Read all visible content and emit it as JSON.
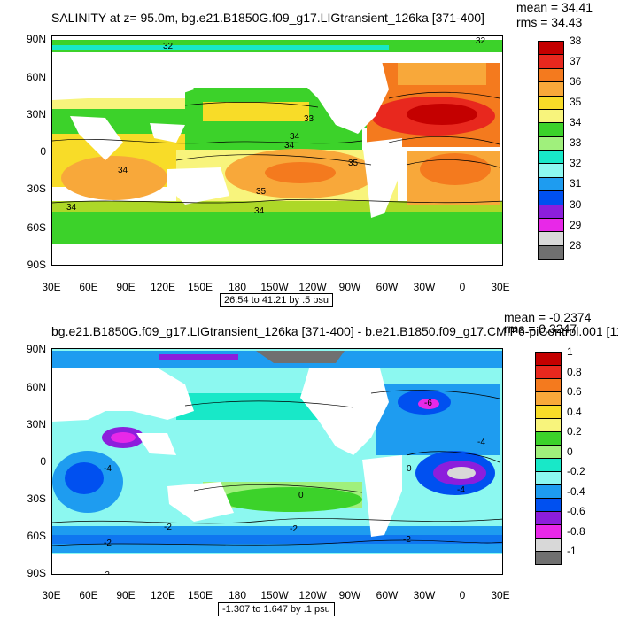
{
  "panels": [
    {
      "title": "SALINITY at z=  95.0m, bg.e21.B1850G.f09_g17.LIGtransient_126ka [371-400]",
      "mean": "mean = 34.41",
      "rms": "rms = 34.43",
      "range": "26.54 to 41.21 by .5 psu",
      "lat_labels": [
        "90N",
        "60N",
        "30N",
        "0",
        "30S",
        "60S",
        "90S"
      ],
      "lon_labels": [
        "30E",
        "60E",
        "90E",
        "120E",
        "150E",
        "180",
        "150W",
        "120W",
        "90W",
        "60W",
        "30W",
        "0",
        "30E"
      ],
      "colorbar": {
        "labels": [
          "38",
          "37",
          "36",
          "35",
          "34",
          "33",
          "32",
          "31",
          "30",
          "29",
          "28"
        ],
        "colors": [
          "#c40000",
          "#e8281e",
          "#f47a1e",
          "#f8a83a",
          "#f8dc28",
          "#f8f47c",
          "#3cd22a",
          "#a0f07c",
          "#18e8c8",
          "#8cf8f0",
          "#1e9cf0",
          "#0050f0",
          "#8c1edc",
          "#e828e8",
          "#d8d8d8",
          "#707070"
        ]
      },
      "contour_labels": [
        "32",
        "32",
        "33",
        "34",
        "34",
        "35",
        "34",
        "34",
        "35",
        "34"
      ]
    },
    {
      "title": "bg.e21.B1850G.f09_g17.LIGtransient_126ka [371-400] - b.e21.B1850.f09_g17.CMIP6-piControl.001 [11",
      "mean": "mean = -0.2374",
      "rms": "rms = 0.3247",
      "range": "-1.307 to 1.647 by .1 psu",
      "lat_labels": [
        "90N",
        "60N",
        "30N",
        "0",
        "30S",
        "60S",
        "90S"
      ],
      "lon_labels": [
        "30E",
        "60E",
        "90E",
        "120E",
        "150E",
        "180",
        "150W",
        "120W",
        "90W",
        "60W",
        "30W",
        "0",
        "30E"
      ],
      "colorbar": {
        "labels": [
          "1",
          "0.8",
          "0.6",
          "0.4",
          "0.2",
          "0",
          "-0.2",
          "-0.4",
          "-0.6",
          "-0.8",
          "-1"
        ],
        "colors": [
          "#c40000",
          "#e8281e",
          "#f47a1e",
          "#f8a83a",
          "#f8dc28",
          "#f8f47c",
          "#3cd22a",
          "#a0f07c",
          "#18e8c8",
          "#8cf8f0",
          "#1e9cf0",
          "#0050f0",
          "#8c1edc",
          "#e828e8",
          "#d8d8d8",
          "#707070"
        ]
      },
      "contour_labels": [
        "-2",
        "0",
        "-2",
        "-4",
        "-2",
        "-6",
        "-4",
        "0",
        "-2",
        "-2",
        "-4"
      ]
    }
  ]
}
